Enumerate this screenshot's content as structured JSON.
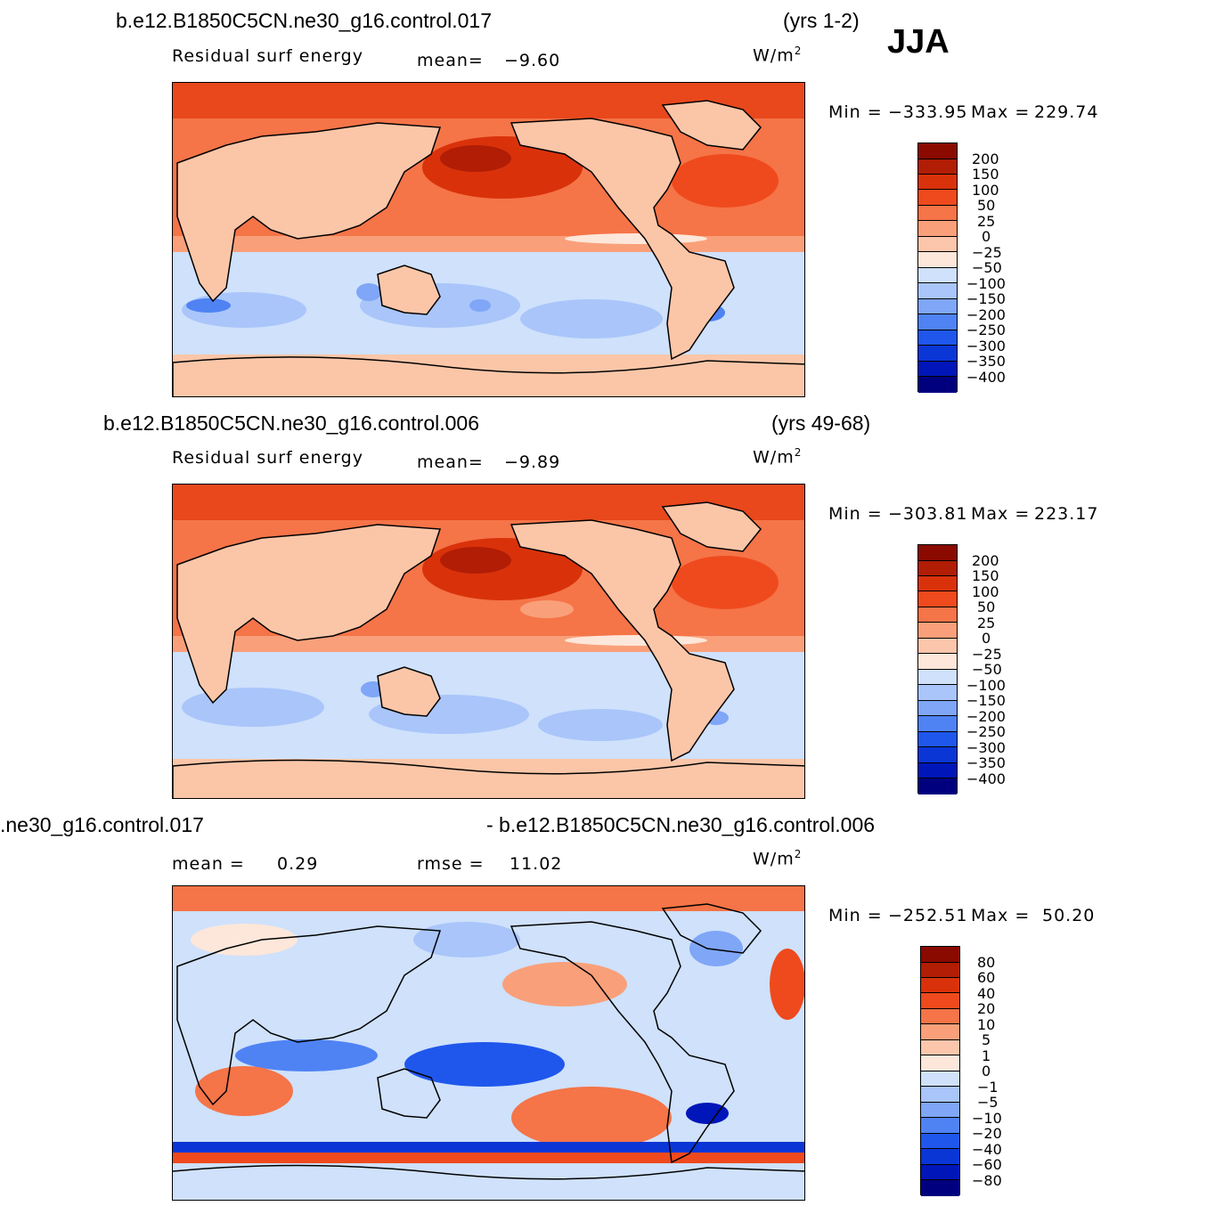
{
  "season": "JJA",
  "colors": {
    "scale": [
      "#00007f",
      "#0016b8",
      "#0a36d6",
      "#1f57ec",
      "#4f83f4",
      "#7fa6f7",
      "#a9c5fa",
      "#cfe1fb",
      "#fde7da",
      "#fcc6ac",
      "#f9a07a",
      "#f57448",
      "#ef4a1d",
      "#d9320b",
      "#b11d05",
      "#8a0a00"
    ],
    "ocean_warm": "#f26a3c",
    "ocean_mid": "#e8481c",
    "ocean_dark": "#c0250a",
    "land": "#fbc6a8",
    "ocean_cold": "#bcd3f7",
    "ocean_cold_mid": "#8fb2f2",
    "ocean_cold_deep": "#3e6fe6",
    "antarctic": "#fbc6a8"
  },
  "panels": [
    {
      "case": "b.e12.B1850C5CN.ne30_g16.control.017",
      "years": "(yrs 1-2)",
      "variable": "Residual surf energy",
      "stat_label": "mean=",
      "stat_value": "−9.60",
      "units": "W/m",
      "units_sup": "2",
      "min_label": "Min =",
      "min_value": "−333.95",
      "max_label": "Max =",
      "max_value": "229.74",
      "levels": [
        "200",
        "150",
        "100",
        "50",
        "25",
        "0",
        "−25",
        "−50",
        "−100",
        "−150",
        "−200",
        "−250",
        "−300",
        "−350",
        "−400"
      ]
    },
    {
      "case": "b.e12.B1850C5CN.ne30_g16.control.006",
      "years": "(yrs 49-68)",
      "variable": "Residual surf energy",
      "stat_label": "mean=",
      "stat_value": "−9.89",
      "units": "W/m",
      "units_sup": "2",
      "min_label": "Min =",
      "min_value": "−303.81",
      "max_label": "Max =",
      "max_value": "223.17",
      "levels": [
        "200",
        "150",
        "100",
        "50",
        "25",
        "0",
        "−25",
        "−50",
        "−100",
        "−150",
        "−200",
        "−250",
        "−300",
        "−350",
        "−400"
      ]
    },
    {
      "case_left": ".ne30_g16.control.017",
      "case_right": "- b.e12.B1850C5CN.ne30_g16.control.006",
      "mean_label": "mean =",
      "mean_value": "0.29",
      "rmse_label": "rmse =",
      "rmse_value": "11.02",
      "units": "W/m",
      "units_sup": "2",
      "min_label": "Min =",
      "min_value": "−252.51",
      "max_label": "Max =",
      "max_value": "50.20",
      "levels": [
        "80",
        "60",
        "40",
        "20",
        "10",
        "5",
        "1",
        "0",
        "−1",
        "−5",
        "−10",
        "−20",
        "−40",
        "−60",
        "−80"
      ]
    }
  ]
}
